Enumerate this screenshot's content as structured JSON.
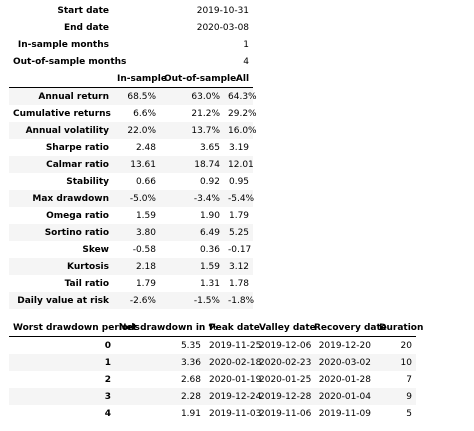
{
  "meta": [
    {
      "label": "Start date",
      "value": "2019-10-31"
    },
    {
      "label": "End date",
      "value": "2020-03-08"
    },
    {
      "label": "In-sample months",
      "value": "1"
    },
    {
      "label": "Out-of-sample months",
      "value": "4"
    }
  ],
  "perf": {
    "columns": [
      "",
      "In-sample",
      "Out-of-sample",
      "All"
    ],
    "rows": [
      {
        "label": "Annual return",
        "v": [
          "68.5%",
          "63.0%",
          "64.3%"
        ]
      },
      {
        "label": "Cumulative returns",
        "v": [
          "6.6%",
          "21.2%",
          "29.2%"
        ]
      },
      {
        "label": "Annual volatility",
        "v": [
          "22.0%",
          "13.7%",
          "16.0%"
        ]
      },
      {
        "label": "Sharpe ratio",
        "v": [
          "2.48",
          "3.65",
          "3.19"
        ]
      },
      {
        "label": "Calmar ratio",
        "v": [
          "13.61",
          "18.74",
          "12.01"
        ]
      },
      {
        "label": "Stability",
        "v": [
          "0.66",
          "0.92",
          "0.95"
        ]
      },
      {
        "label": "Max drawdown",
        "v": [
          "-5.0%",
          "-3.4%",
          "-5.4%"
        ]
      },
      {
        "label": "Omega ratio",
        "v": [
          "1.59",
          "1.90",
          "1.79"
        ]
      },
      {
        "label": "Sortino ratio",
        "v": [
          "3.80",
          "6.49",
          "5.25"
        ]
      },
      {
        "label": "Skew",
        "v": [
          "-0.58",
          "0.36",
          "-0.17"
        ]
      },
      {
        "label": "Kurtosis",
        "v": [
          "2.18",
          "1.59",
          "3.12"
        ]
      },
      {
        "label": "Tail ratio",
        "v": [
          "1.79",
          "1.31",
          "1.78"
        ]
      },
      {
        "label": "Daily value at risk",
        "v": [
          "-2.6%",
          "-1.5%",
          "-1.8%"
        ]
      }
    ]
  },
  "drawdown": {
    "columns": [
      "Worst drawdown periods",
      "Net drawdown in %",
      "Peak date",
      "Valley date",
      "Recovery date",
      "Duration"
    ],
    "rows": [
      [
        "0",
        "5.35",
        "2019-11-25",
        "2019-12-06",
        "2019-12-20",
        "20"
      ],
      [
        "1",
        "3.36",
        "2020-02-18",
        "2020-02-23",
        "2020-03-02",
        "10"
      ],
      [
        "2",
        "2.68",
        "2020-01-19",
        "2020-01-25",
        "2020-01-28",
        "7"
      ],
      [
        "3",
        "2.28",
        "2019-12-24",
        "2019-12-28",
        "2020-01-04",
        "9"
      ],
      [
        "4",
        "1.91",
        "2019-11-03",
        "2019-11-06",
        "2019-11-09",
        "5"
      ]
    ]
  }
}
